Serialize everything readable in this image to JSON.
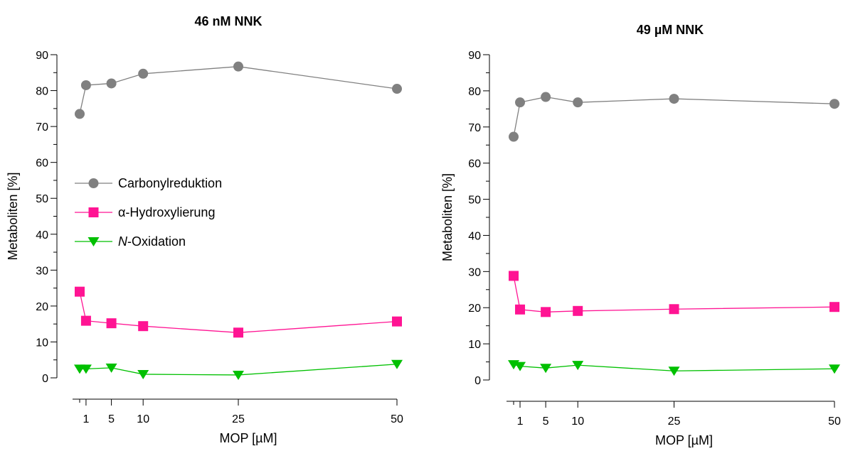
{
  "chart_data": [
    {
      "type": "line",
      "title": "46 nM NNK",
      "xlabel": "MOP [µM]",
      "ylabel": "Metaboliten [%]",
      "ylim": [
        0,
        90
      ],
      "yticks": [
        "0",
        "10",
        "20",
        "30",
        "40",
        "50",
        "60",
        "70",
        "80",
        "90"
      ],
      "xticks": [
        "1",
        "5",
        "10",
        "25",
        "50"
      ],
      "legend_placement": "center-left",
      "grid": false,
      "x": [
        0,
        1,
        5,
        10,
        25,
        50
      ],
      "series": [
        {
          "name": "Carbonylreduktion",
          "color": "#808080",
          "marker": "circle",
          "values": [
            73.5,
            81.5,
            82.0,
            84.7,
            86.7,
            80.5
          ]
        },
        {
          "name": "α-Hydroxylierung",
          "color": "#ff1493",
          "marker": "square",
          "values": [
            24.0,
            15.9,
            15.2,
            14.4,
            12.6,
            15.7
          ]
        },
        {
          "name": "N-Oxidation",
          "color": "#00c000",
          "marker": "triangle-down",
          "values": [
            2.5,
            2.5,
            2.8,
            1.0,
            0.8,
            3.8
          ]
        }
      ]
    },
    {
      "type": "line",
      "title": "49 µM NNK",
      "xlabel": "MOP [µM]",
      "ylabel": "Metaboliten [%]",
      "ylim": [
        0,
        90
      ],
      "yticks": [
        "0",
        "10",
        "20",
        "30",
        "40",
        "50",
        "60",
        "70",
        "80",
        "90"
      ],
      "xticks": [
        "1",
        "5",
        "10",
        "25",
        "50"
      ],
      "grid": false,
      "x": [
        0,
        1,
        5,
        10,
        25,
        50
      ],
      "series": [
        {
          "color": "#808080",
          "marker": "circle",
          "values": [
            67.3,
            76.8,
            78.3,
            76.8,
            77.8,
            76.4
          ]
        },
        {
          "color": "#ff1493",
          "marker": "square",
          "values": [
            28.8,
            19.5,
            18.8,
            19.1,
            19.6,
            20.2
          ]
        },
        {
          "color": "#00c000",
          "marker": "triangle-down",
          "values": [
            4.3,
            3.8,
            3.3,
            4.1,
            2.5,
            3.1
          ]
        }
      ]
    }
  ]
}
